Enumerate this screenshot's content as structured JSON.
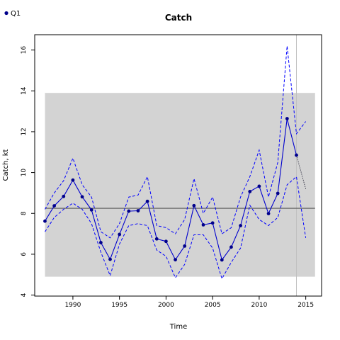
{
  "chart_data": {
    "type": "line",
    "title": "Catch",
    "xlabel": "Time",
    "ylabel": "Catch, kt",
    "xlim": [
      1985.9,
      2016.7
    ],
    "ylim": [
      3.95,
      16.75
    ],
    "xticks": [
      1990,
      1995,
      2000,
      2005,
      2010,
      2015
    ],
    "yticks": [
      4,
      6,
      8,
      10,
      12,
      14,
      16
    ],
    "legend": {
      "position": "top-left",
      "label": "Q1",
      "color": "#00008b"
    },
    "shaded_region": {
      "x": [
        1987,
        2016
      ],
      "y": [
        4.9,
        13.9
      ],
      "color": "#d3d3d3"
    },
    "reference_line": {
      "y": 8.25,
      "color": "#555555"
    },
    "vertical_line": {
      "x": 2014,
      "color": "#c0c0c0"
    },
    "colors": {
      "estimate": "#0000cd",
      "points": "#00008b",
      "bounds": "#0000ff",
      "projection": "#1a1a2e"
    },
    "x": [
      1987,
      1988,
      1989,
      1990,
      1991,
      1992,
      1993,
      1994,
      1995,
      1996,
      1997,
      1998,
      1999,
      2000,
      2001,
      2002,
      2003,
      2004,
      2005,
      2006,
      2007,
      2008,
      2009,
      2010,
      2011,
      2012,
      2013,
      2014
    ],
    "series": [
      {
        "name": "Q1",
        "values": [
          7.62,
          8.37,
          8.83,
          9.63,
          8.81,
          8.17,
          6.57,
          5.75,
          6.97,
          8.11,
          8.13,
          8.59,
          6.75,
          6.63,
          5.73,
          6.4,
          8.38,
          7.44,
          7.53,
          5.72,
          6.35,
          7.4,
          9.07,
          9.33,
          7.99,
          8.98,
          12.64,
          10.85
        ]
      }
    ],
    "upper_bound": {
      "x": [
        1987,
        1988,
        1989,
        1990,
        1991,
        1992,
        1993,
        1994,
        1995,
        1996,
        1997,
        1998,
        1999,
        2000,
        2001,
        2002,
        2003,
        2004,
        2005,
        2006,
        2007,
        2008,
        2009,
        2010,
        2011,
        2012,
        2013,
        2014,
        2015
      ],
      "values": [
        8.2,
        9.0,
        9.6,
        10.7,
        9.4,
        8.8,
        7.1,
        6.8,
        7.5,
        8.8,
        8.9,
        9.8,
        7.4,
        7.3,
        7.0,
        7.7,
        9.7,
        8.0,
        8.8,
        7.0,
        7.3,
        8.8,
        9.8,
        11.1,
        8.8,
        10.5,
        16.2,
        11.9,
        12.5
      ]
    },
    "lower_bound": {
      "x": [
        1987,
        1988,
        1989,
        1990,
        1991,
        1992,
        1993,
        1994,
        1995,
        1996,
        1997,
        1998,
        1999,
        2000,
        2001,
        2002,
        2003,
        2004,
        2005,
        2006,
        2007,
        2008,
        2009,
        2010,
        2011,
        2012,
        2013,
        2014,
        2015
      ],
      "values": [
        7.1,
        7.8,
        8.2,
        8.5,
        8.2,
        7.5,
        6.1,
        4.95,
        6.5,
        7.4,
        7.5,
        7.4,
        6.2,
        5.9,
        4.85,
        5.5,
        6.95,
        6.95,
        6.3,
        4.8,
        5.6,
        6.3,
        8.4,
        7.7,
        7.4,
        7.8,
        9.4,
        9.8,
        6.8
      ]
    },
    "projection": {
      "x": [
        2014,
        2015
      ],
      "values": [
        10.85,
        9.2
      ]
    },
    "grid": false
  }
}
